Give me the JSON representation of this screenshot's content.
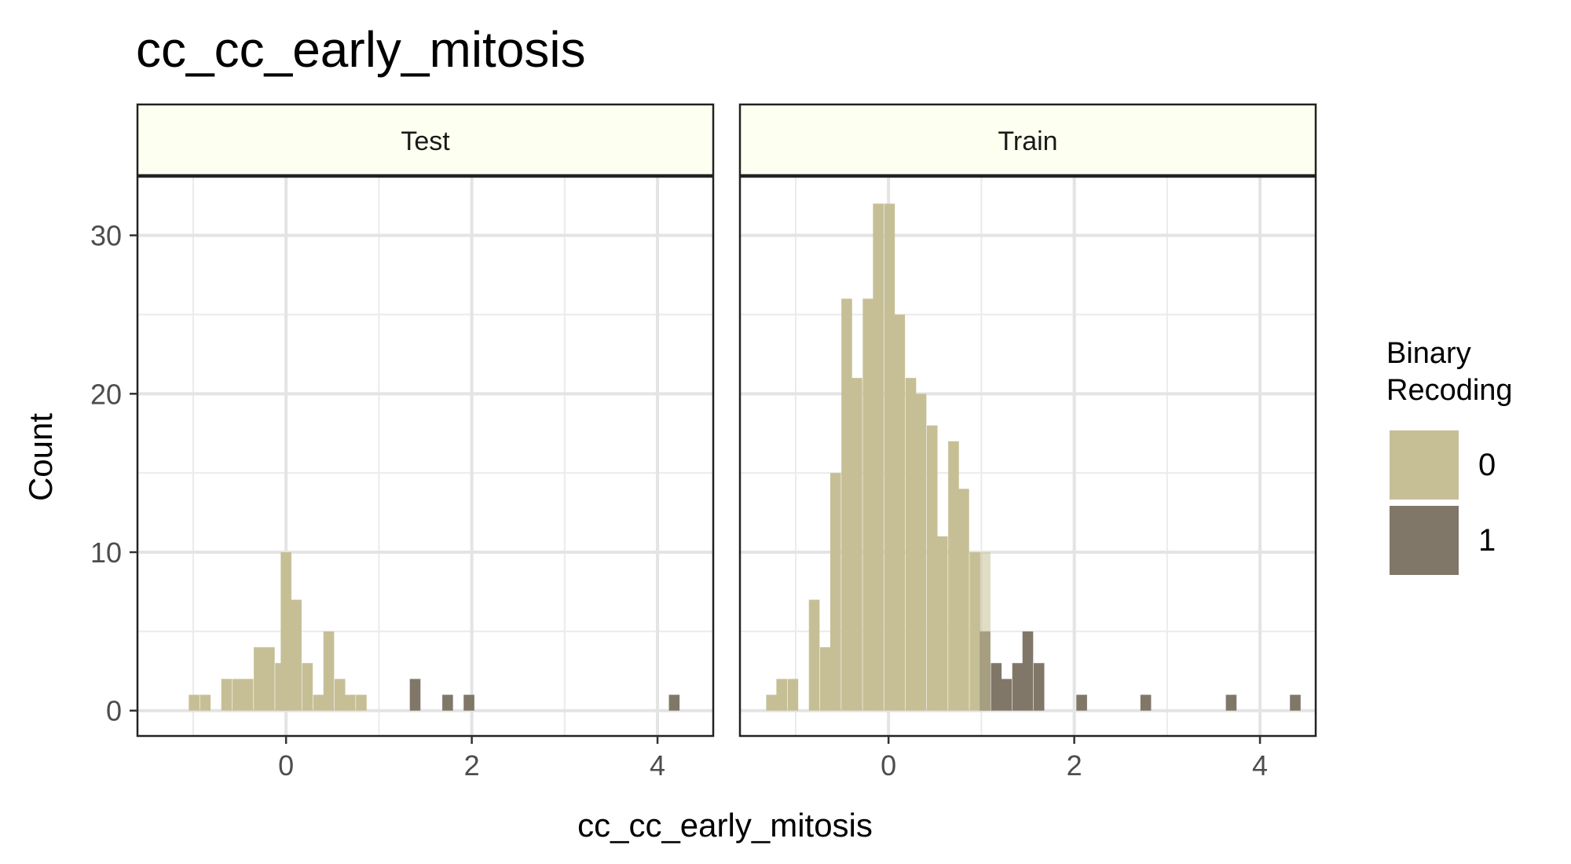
{
  "chart_data": {
    "type": "bar",
    "title": "cc_cc_early_mitosis",
    "xlabel": "cc_cc_early_mitosis",
    "ylabel": "Count",
    "xlim": [
      -1.6,
      4.6
    ],
    "ylim": [
      -1.6,
      33.7
    ],
    "x_ticks": [
      0,
      2,
      4
    ],
    "x_minor": [
      -1,
      1,
      3
    ],
    "y_ticks": [
      0,
      10,
      20,
      30
    ],
    "y_minor": [
      5,
      15,
      25
    ],
    "bin_width": 0.115,
    "grid": true,
    "legend": {
      "title_lines": [
        "Binary",
        "Recoding"
      ],
      "placement": "right",
      "entries": [
        {
          "label": "0",
          "color": "#c6bf96"
        },
        {
          "label": "1",
          "color": "#807769"
        }
      ]
    },
    "facets": [
      {
        "label": "Test",
        "bars": [
          {
            "x": -0.99,
            "count": 1,
            "group": 0
          },
          {
            "x": -0.87,
            "count": 1,
            "group": 0
          },
          {
            "x": -0.64,
            "count": 2,
            "group": 0
          },
          {
            "x": -0.52,
            "count": 2,
            "group": 0
          },
          {
            "x": -0.41,
            "count": 2,
            "group": 0
          },
          {
            "x": -0.29,
            "count": 4,
            "group": 0
          },
          {
            "x": -0.18,
            "count": 4,
            "group": 0
          },
          {
            "x": -0.06,
            "count": 3,
            "group": 0
          },
          {
            "x": 0.0,
            "count": 10,
            "group": 0
          },
          {
            "x": 0.11,
            "count": 7,
            "group": 0
          },
          {
            "x": 0.23,
            "count": 3,
            "group": 0
          },
          {
            "x": 0.35,
            "count": 1,
            "group": 0
          },
          {
            "x": 0.46,
            "count": 5,
            "group": 0
          },
          {
            "x": 0.58,
            "count": 2,
            "group": 0
          },
          {
            "x": 0.69,
            "count": 1,
            "group": 0
          },
          {
            "x": 0.81,
            "count": 1,
            "group": 0
          },
          {
            "x": 1.39,
            "count": 2,
            "group": 1
          },
          {
            "x": 1.74,
            "count": 1,
            "group": 1
          },
          {
            "x": 1.97,
            "count": 1,
            "group": 1
          },
          {
            "x": 4.18,
            "count": 1,
            "group": 1
          }
        ]
      },
      {
        "label": "Train",
        "bars": [
          {
            "x": -1.26,
            "count": 1,
            "group": 0
          },
          {
            "x": -1.15,
            "count": 2,
            "group": 0
          },
          {
            "x": -1.03,
            "count": 2,
            "group": 0
          },
          {
            "x": -0.8,
            "count": 7,
            "group": 0
          },
          {
            "x": -0.68,
            "count": 4,
            "group": 0
          },
          {
            "x": -0.57,
            "count": 15,
            "group": 0
          },
          {
            "x": -0.45,
            "count": 26,
            "group": 0
          },
          {
            "x": -0.34,
            "count": 21,
            "group": 0
          },
          {
            "x": -0.22,
            "count": 26,
            "group": 0
          },
          {
            "x": -0.11,
            "count": 32,
            "group": 0
          },
          {
            "x": 0.01,
            "count": 32,
            "group": 0
          },
          {
            "x": 0.12,
            "count": 25,
            "group": 0
          },
          {
            "x": 0.24,
            "count": 21,
            "group": 0
          },
          {
            "x": 0.35,
            "count": 20,
            "group": 0
          },
          {
            "x": 0.47,
            "count": 18,
            "group": 0
          },
          {
            "x": 0.58,
            "count": 11,
            "group": 0
          },
          {
            "x": 0.7,
            "count": 17,
            "group": 0
          },
          {
            "x": 0.81,
            "count": 14,
            "group": 0
          },
          {
            "x": 0.93,
            "count": 10,
            "group": 0
          },
          {
            "x": 1.04,
            "count": 5,
            "group": 1
          },
          {
            "x": 1.16,
            "count": 3,
            "group": 1
          },
          {
            "x": 1.27,
            "count": 2,
            "group": 1
          },
          {
            "x": 1.39,
            "count": 3,
            "group": 1
          },
          {
            "x": 1.5,
            "count": 5,
            "group": 1
          },
          {
            "x": 1.62,
            "count": 3,
            "group": 1
          },
          {
            "x": 2.08,
            "count": 1,
            "group": 1
          },
          {
            "x": 2.77,
            "count": 1,
            "group": 1
          },
          {
            "x": 3.69,
            "count": 1,
            "group": 1
          },
          {
            "x": 4.38,
            "count": 1,
            "group": 1
          }
        ],
        "overlays": [
          {
            "x": 1.04,
            "count": 10,
            "group": 0
          }
        ]
      }
    ]
  }
}
